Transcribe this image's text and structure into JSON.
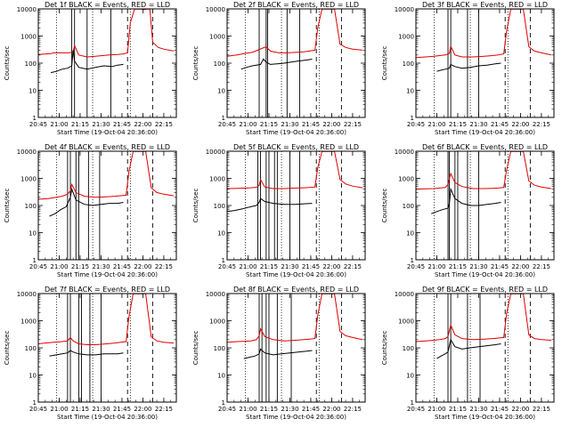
{
  "chart_data": {
    "type": "line",
    "layout": "3x3 grid",
    "scale": "log-y",
    "colors": {
      "events": "#000000",
      "lld": "#e00000",
      "axes": "#000000"
    },
    "shared": {
      "ylabel": "Counts/sec",
      "xlabel": "Start Time (19-Oct-04 20:36:00)",
      "xlim": [
        9,
        108
      ],
      "ylim": [
        1,
        10000
      ],
      "x_tick_positions": [
        9,
        24,
        39,
        54,
        69,
        84,
        99
      ],
      "x_tick_labels": [
        "20:45",
        "21:00",
        "21:15",
        "21:30",
        "21:45",
        "22:00",
        "22:15"
      ],
      "y_tick_values": [
        1,
        10,
        100,
        1000,
        10000
      ],
      "y_tick_labels": [
        "1",
        "10",
        "100",
        "1000",
        "10000"
      ],
      "dotted_lines": [
        22,
        48,
        75
      ],
      "dashed_lines": [
        73,
        91
      ]
    },
    "panels": [
      {
        "title": "Det 1f BLACK = Events, RED = LLD",
        "solid_lines": [
          33,
          35,
          44,
          61
        ],
        "lld": {
          "x": [
            9,
            18,
            20,
            25,
            31,
            34,
            35,
            38,
            44,
            50,
            60,
            66,
            70,
            73,
            75,
            78,
            83,
            85,
            87,
            89,
            91,
            95,
            99,
            106
          ],
          "y": [
            210,
            225,
            240,
            240,
            240,
            260,
            450,
            200,
            170,
            180,
            200,
            210,
            220,
            240,
            3000,
            9800,
            9800,
            9500,
            9800,
            9800,
            600,
            380,
            330,
            280
          ]
        },
        "events": {
          "x": [
            18,
            22,
            26,
            30,
            33,
            34,
            35,
            38,
            44,
            50,
            56,
            62,
            66,
            70
          ],
          "y": [
            45,
            50,
            60,
            65,
            80,
            300,
            120,
            70,
            60,
            70,
            80,
            75,
            85,
            90
          ]
        }
      },
      {
        "title": "Det 2f BLACK = Events, RED = LLD",
        "solid_lines": [
          32,
          37,
          38,
          52,
          61
        ],
        "lld": {
          "x": [
            9,
            16,
            22,
            27,
            31,
            34,
            37,
            40,
            46,
            52,
            58,
            64,
            68,
            72,
            74,
            77,
            80,
            83,
            86,
            90,
            94,
            99,
            106
          ],
          "y": [
            180,
            200,
            230,
            250,
            300,
            350,
            400,
            280,
            240,
            240,
            250,
            260,
            280,
            300,
            2000,
            9800,
            9800,
            9800,
            9800,
            500,
            380,
            330,
            300
          ]
        },
        "events": {
          "x": [
            19,
            23,
            27,
            30,
            33,
            35,
            37,
            40,
            45,
            50,
            55,
            60,
            66,
            70
          ],
          "y": [
            60,
            70,
            80,
            85,
            90,
            140,
            110,
            90,
            95,
            100,
            110,
            120,
            130,
            140
          ]
        }
      },
      {
        "title": "Det 3f BLACK = Events, RED = LLD",
        "solid_lines": [
          32,
          34,
          46,
          54
        ],
        "lld": {
          "x": [
            9,
            16,
            22,
            26,
            30,
            33,
            34,
            37,
            42,
            50,
            58,
            64,
            68,
            72,
            74,
            77,
            80,
            83,
            86,
            90,
            94,
            99,
            106
          ],
          "y": [
            160,
            170,
            180,
            190,
            200,
            230,
            420,
            200,
            170,
            170,
            180,
            190,
            200,
            220,
            1500,
            9800,
            9800,
            9800,
            9800,
            400,
            280,
            240,
            200
          ]
        },
        "events": {
          "x": [
            24,
            27,
            30,
            33,
            34,
            37,
            42,
            48,
            54,
            60,
            66,
            70
          ],
          "y": [
            50,
            55,
            60,
            65,
            90,
            75,
            65,
            70,
            80,
            85,
            95,
            100
          ]
        }
      },
      {
        "title": "Det 4f BLACK = Events, RED = LLD",
        "solid_lines": [
          30,
          32,
          36,
          38,
          45,
          53
        ],
        "lld": {
          "x": [
            9,
            16,
            22,
            26,
            30,
            32,
            33,
            36,
            42,
            50,
            58,
            64,
            68,
            72,
            74,
            77,
            80,
            83,
            86,
            90,
            94,
            99,
            106
          ],
          "y": [
            170,
            180,
            200,
            220,
            260,
            350,
            600,
            300,
            220,
            200,
            210,
            220,
            230,
            240,
            1800,
            9800,
            9800,
            9800,
            9800,
            450,
            300,
            260,
            230
          ]
        },
        "events": {
          "x": [
            17,
            21,
            25,
            29,
            32,
            33,
            36,
            42,
            48,
            54,
            60,
            66,
            70
          ],
          "y": [
            40,
            50,
            70,
            90,
            200,
            400,
            160,
            110,
            100,
            110,
            120,
            120,
            130
          ]
        }
      },
      {
        "title": "Det 5f BLACK = Events, RED = LLD",
        "solid_lines": [
          31,
          33,
          37,
          39,
          43,
          45,
          54,
          61
        ],
        "lld": {
          "x": [
            9,
            16,
            22,
            26,
            30,
            32,
            33,
            36,
            42,
            50,
            58,
            64,
            68,
            72,
            74,
            77,
            80,
            83,
            86,
            90,
            94,
            99,
            106
          ],
          "y": [
            420,
            430,
            440,
            450,
            470,
            550,
            900,
            480,
            420,
            420,
            440,
            450,
            460,
            480,
            2500,
            9800,
            9800,
            9800,
            9800,
            900,
            620,
            520,
            450
          ]
        },
        "events": {
          "x": [
            9,
            14,
            20,
            26,
            30,
            32,
            33,
            36,
            42,
            50,
            58,
            64,
            70
          ],
          "y": [
            60,
            65,
            75,
            90,
            100,
            130,
            180,
            140,
            120,
            110,
            110,
            115,
            120
          ]
        }
      },
      {
        "title": "Det 6f BLACK = Events, RED = LLD",
        "solid_lines": [
          32,
          33,
          37,
          39,
          46,
          54
        ],
        "lld": {
          "x": [
            9,
            16,
            22,
            26,
            30,
            32,
            34,
            37,
            42,
            50,
            58,
            64,
            68,
            72,
            74,
            77,
            80,
            83,
            86,
            90,
            94,
            99,
            106
          ],
          "y": [
            400,
            410,
            420,
            440,
            460,
            600,
            1500,
            700,
            500,
            420,
            420,
            430,
            440,
            460,
            2000,
            9800,
            9800,
            9800,
            9800,
            800,
            560,
            480,
            420
          ]
        },
        "events": {
          "x": [
            20,
            24,
            28,
            32,
            33,
            34,
            37,
            42,
            48,
            54,
            60,
            66,
            70
          ],
          "y": [
            50,
            60,
            70,
            80,
            120,
            400,
            180,
            120,
            100,
            100,
            110,
            120,
            130
          ]
        }
      },
      {
        "title": "Det 7f BLACK = Events, RED = LLD",
        "solid_lines": [
          30,
          32,
          38,
          40,
          46,
          54
        ],
        "lld": {
          "x": [
            9,
            14,
            20,
            26,
            30,
            32,
            34,
            38,
            44,
            50,
            58,
            64,
            68,
            72,
            74,
            77,
            80,
            83,
            86,
            90,
            94,
            99,
            106
          ],
          "y": [
            140,
            150,
            160,
            170,
            180,
            240,
            180,
            140,
            130,
            130,
            140,
            150,
            160,
            170,
            1400,
            9800,
            9800,
            9800,
            9800,
            250,
            180,
            160,
            150
          ]
        },
        "events": {
          "x": [
            17,
            22,
            26,
            30,
            32,
            34,
            38,
            44,
            50,
            56,
            62,
            66,
            70
          ],
          "y": [
            50,
            55,
            60,
            65,
            80,
            70,
            60,
            55,
            55,
            60,
            60,
            60,
            65
          ]
        }
      },
      {
        "title": "Det 8f BLACK = Events, RED = LLD",
        "solid_lines": [
          32,
          34,
          37,
          39,
          45,
          55
        ],
        "lld": {
          "x": [
            9,
            16,
            22,
            26,
            30,
            32,
            33,
            36,
            42,
            50,
            58,
            64,
            68,
            72,
            74,
            77,
            80,
            83,
            86,
            90,
            94,
            99,
            106
          ],
          "y": [
            160,
            170,
            175,
            180,
            200,
            280,
            500,
            260,
            200,
            180,
            190,
            200,
            210,
            220,
            1600,
            9800,
            9800,
            9800,
            9800,
            400,
            280,
            240,
            200
          ]
        },
        "events": {
          "x": [
            21,
            25,
            29,
            32,
            33,
            36,
            42,
            48,
            54,
            60,
            66,
            70
          ],
          "y": [
            40,
            45,
            50,
            60,
            90,
            65,
            55,
            60,
            65,
            70,
            75,
            80
          ]
        }
      },
      {
        "title": "Det 9f BLACK = Events, RED = LLD",
        "solid_lines": [
          32,
          34,
          46,
          55
        ],
        "lld": {
          "x": [
            9,
            16,
            22,
            26,
            30,
            32,
            34,
            37,
            42,
            50,
            58,
            64,
            68,
            72,
            74,
            77,
            80,
            83,
            86,
            90,
            94,
            99,
            106
          ],
          "y": [
            170,
            180,
            190,
            200,
            220,
            260,
            700,
            300,
            220,
            200,
            210,
            220,
            230,
            240,
            1800,
            9800,
            9800,
            9800,
            9800,
            300,
            220,
            200,
            190
          ]
        },
        "events": {
          "x": [
            24,
            27,
            30,
            32,
            34,
            37,
            42,
            48,
            54,
            60,
            66,
            70
          ],
          "y": [
            40,
            50,
            60,
            70,
            200,
            110,
            90,
            100,
            110,
            120,
            130,
            140
          ]
        }
      }
    ]
  }
}
